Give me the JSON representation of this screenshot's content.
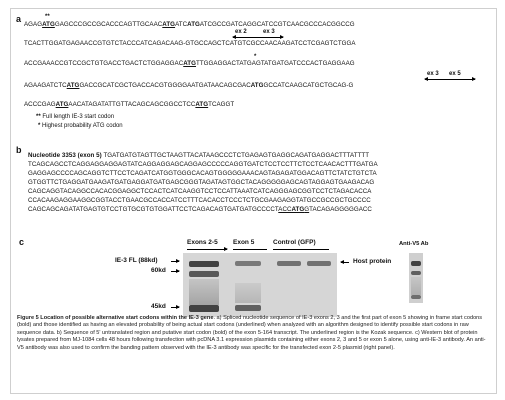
{
  "panel_a": {
    "letter": "a",
    "lines": [
      [
        {
          "t": "AGAG"
        },
        {
          "t": "ATG",
          "b": 1,
          "u": 1
        },
        {
          "t": "GAGCCCGCCGCACCCAGTTGCAAC"
        },
        {
          "t": "ATG",
          "b": 1,
          "u": 1
        },
        {
          "t": "ATC"
        },
        {
          "t": "ATG",
          "b": 1
        },
        {
          "t": "ATCGCCGATCAGGCATCCGTCAACGCCCACGGCCG"
        }
      ],
      [
        {
          "t": "TCACTTGGATGAGAACCGTGTCTACCCATCAGACAAG-GTGCCAGCTCATGTCGCCAACAAGATCCTCGAGTCTGGA"
        }
      ],
      [
        {
          "t": "ACCGAAACCGTCCGCTGTGACCTGACTCTGGAGGAC"
        },
        {
          "t": "ATG",
          "b": 1,
          "u": 1
        },
        {
          "t": "TTGGAGGACTATGAGTATGATGATCCCACTGAGGAAG"
        }
      ],
      [
        {
          "t": "AGAAGATCTC"
        },
        {
          "t": "ATG",
          "b": 1,
          "u": 1
        },
        {
          "t": "GACCGCATCGCTGACCACGTGGGGAATGATAACAGCGAC"
        },
        {
          "t": "ATG",
          "b": 1
        },
        {
          "t": "GCCATCAAGCATGCTGCAG-G"
        }
      ],
      [
        {
          "t": "ACCCGAG"
        },
        {
          "t": "ATG",
          "b": 1,
          "u": 1
        },
        {
          "t": "AACATAGATATTGTTACAGCAGCGGCCTCC"
        },
        {
          "t": "ATG",
          "b": 1,
          "u": 1
        },
        {
          "t": "TCAGGT"
        }
      ]
    ],
    "stars_top": "**",
    "star_single": "*",
    "exon_labels": [
      "ex 2",
      "ex 3",
      "ex 3",
      "ex 5"
    ],
    "legend": [
      {
        "mark": "**",
        "text": "Full length IE-3 start codon"
      },
      {
        "mark": "*",
        "text": "Highest probability ATG codon"
      }
    ]
  },
  "panel_b": {
    "letter": "b",
    "heading": "Nucleotide 3353 (exon 5)",
    "lines": [
      [
        {
          "t": "TGATGATGTAGTTGCTAAGTTACATAAGCCCTCTGAGAGTGAGGCAGATGAGGACTTTATTTT"
        }
      ],
      [
        {
          "t": "TCAGCAGCCTCAGGAGGAGGAGTATCAGGAGGAGCAGGAGCCCCCAGGTGATCTCCTCCTTCTCCTCAACACTTTGATGA"
        }
      ],
      [
        {
          "t": "GAGGAGCCCCAGCAGGTCTTCCTCAGATCATGGTGGGCACAGTGGGGGAAACAGTAGAGATGGACAGTTCTATCTGTCTA"
        }
      ],
      [
        {
          "t": "GTGGTTCTGAGGATGAAGATGATGAGGATGATGAGCGGGTAGATAGTGGCTACAGGGGGAGCAGTAGGAGTGAAGACAG"
        }
      ],
      [
        {
          "t": "CAGCAGGTACAGGCCACACGGAGGCTCCACTCATCAAGGTCCTCCATTAAATCATCAGGGAGCGGTCCTCTAGACACCA"
        }
      ],
      [
        {
          "t": "CCACAAGAGGAAGGCGGTACCTGAACGCCACCATCCTTTCACACCTCCCTCTGCGAAGAGGTATGCCGCCGCTGCCCC"
        }
      ],
      [
        {
          "t": "CAGCAGCAGATATGAGTGTCCTGTGCGTGTGGATTCCTCAGACAGTGATGATGCCCCT"
        },
        {
          "t": "ACCATGG",
          "u": 1,
          "bm": "ATG"
        },
        {
          "t": "TACAGAGGGGGACC"
        }
      ]
    ]
  },
  "panel_c": {
    "letter": "c",
    "group_labels": [
      "Exons 2-5",
      "Exon 5",
      "Control (GFP)"
    ],
    "right_label": "Anti-V5 Ab",
    "left_markers": [
      "IE-3 FL (88kd)",
      "60kd",
      "45kd"
    ],
    "right_marker": "Host protein"
  },
  "caption": {
    "title": "Figure 5 Location of possible alternative start codons within the IE-3 gene",
    "body": ". a) Spliced nucleotide sequence of IE-3 exons 2, 3 and the first part of exon 5 showing in frame start codons (bold) and those identified as having an elevated probability of being actual start codons (underlined) when analyzed with an algorithm designed to identify possible start codons in raw sequence data. b) Sequence of 5' untranslated region and putative start codon (bold) of the exon 5-164 transcript. The underlined region is the Kozak sequence. c) Western blot of protein lysates prepared from MJ-1084 cells 48 hours following transfection with pcDNA 3.1 expression plasmids containing either exons 2, 3 and 5 or exon 5 alone, using anti-IE-3 antibody. An anti-V5 antibody was also used to confirm the banding pattern observed with the IE-3 antibody was specific for the transfected exon 2-5 plasmid (right panel)."
  }
}
